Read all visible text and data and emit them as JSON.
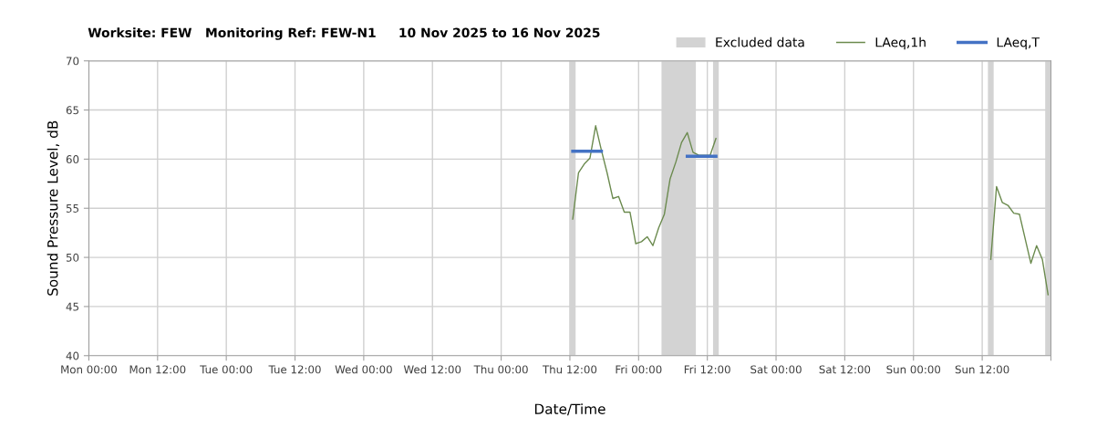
{
  "chart_data": {
    "type": "line",
    "title": "Worksite: FEW   Monitoring Ref: FEW-N1     10 Nov 2025 to 16 Nov 2025",
    "xlabel": "Date/Time",
    "ylabel": "Sound Pressure Level, dB",
    "xlim": [
      "2025-11-10T00:00",
      "2025-11-17T00:00"
    ],
    "ylim": [
      40,
      70
    ],
    "xticks": [
      {
        "value": "2025-11-10T00:00",
        "label": "Mon 00:00"
      },
      {
        "value": "2025-11-10T12:00",
        "label": "Mon 12:00"
      },
      {
        "value": "2025-11-11T00:00",
        "label": "Tue 00:00"
      },
      {
        "value": "2025-11-11T12:00",
        "label": "Tue 12:00"
      },
      {
        "value": "2025-11-12T00:00",
        "label": "Wed 00:00"
      },
      {
        "value": "2025-11-12T12:00",
        "label": "Wed 12:00"
      },
      {
        "value": "2025-11-13T00:00",
        "label": "Thu 00:00"
      },
      {
        "value": "2025-11-13T12:00",
        "label": "Thu 12:00"
      },
      {
        "value": "2025-11-14T00:00",
        "label": "Fri 00:00"
      },
      {
        "value": "2025-11-14T12:00",
        "label": "Fri 12:00"
      },
      {
        "value": "2025-11-15T00:00",
        "label": "Sat 00:00"
      },
      {
        "value": "2025-11-15T12:00",
        "label": "Sat 12:00"
      },
      {
        "value": "2025-11-16T00:00",
        "label": "Sun 00:00"
      },
      {
        "value": "2025-11-16T12:00",
        "label": "Sun 12:00"
      },
      {
        "value": "2025-11-17T00:00",
        "label": null
      }
    ],
    "yticks": [
      40,
      45,
      50,
      55,
      60,
      65,
      70
    ],
    "grid": true,
    "legend": "top right",
    "bands": [
      {
        "axis": "x",
        "from": "2025-11-13T12:00",
        "to": "2025-11-13T13:00",
        "label": "Excluded data",
        "color": "#d3d3d3"
      },
      {
        "axis": "x",
        "from": "2025-11-14T04:00",
        "to": "2025-11-14T10:00",
        "color": "#d3d3d3"
      },
      {
        "axis": "x",
        "from": "2025-11-14T13:00",
        "to": "2025-11-14T14:00",
        "color": "#d3d3d3"
      },
      {
        "axis": "x",
        "from": "2025-11-16T13:00",
        "to": "2025-11-16T14:00",
        "color": "#d3d3d3"
      },
      {
        "axis": "x",
        "from": "2025-11-16T23:00",
        "to": "2025-11-17T00:00",
        "color": "#d3d3d3"
      }
    ],
    "series": [
      {
        "name": "LAeq,1h",
        "color": "#6b8a4e",
        "x": [
          "2025-11-13T12:30",
          "2025-11-13T13:30",
          "2025-11-13T14:30",
          "2025-11-13T15:30",
          "2025-11-13T16:30",
          "2025-11-13T17:30",
          "2025-11-13T18:30",
          "2025-11-13T19:30",
          "2025-11-13T20:30",
          "2025-11-13T21:30",
          "2025-11-13T22:30",
          "2025-11-13T23:30",
          "2025-11-14T00:30",
          "2025-11-14T01:30",
          "2025-11-14T02:30",
          "2025-11-14T03:30",
          "2025-11-14T04:30",
          "2025-11-14T05:30",
          "2025-11-14T06:30",
          "2025-11-14T07:30",
          "2025-11-14T08:30",
          "2025-11-14T09:30",
          "2025-11-14T10:30",
          "2025-11-14T11:30",
          "2025-11-14T12:30",
          "2025-11-14T13:30",
          "2025-11-15T10:00",
          "2025-11-16T13:30",
          "2025-11-16T14:30",
          "2025-11-16T15:30",
          "2025-11-16T16:30",
          "2025-11-16T17:30",
          "2025-11-16T18:30",
          "2025-11-16T19:30",
          "2025-11-16T20:30",
          "2025-11-16T21:30",
          "2025-11-16T22:30",
          "2025-11-16T23:30"
        ],
        "values": [
          53.9,
          58.6,
          59.5,
          60.1,
          63.4,
          60.9,
          58.6,
          56.0,
          56.2,
          54.6,
          54.6,
          51.4,
          51.6,
          52.1,
          51.2,
          53.0,
          54.4,
          58.0,
          59.7,
          61.7,
          62.7,
          60.7,
          60.4,
          60.4,
          60.4,
          62.1,
          null,
          49.8,
          57.2,
          55.6,
          55.3,
          54.5,
          54.4,
          51.9,
          49.4,
          51.2,
          49.8,
          46.2
        ]
      },
      {
        "name": "LAeq,T",
        "color": "#4472c4",
        "x": [
          "2025-11-13T12:30",
          "2025-11-13T17:30",
          "2025-11-14T01:00",
          "2025-11-14T08:30",
          "2025-11-14T13:30"
        ],
        "values": [
          60.8,
          60.8,
          null,
          60.3,
          60.3
        ]
      }
    ]
  }
}
